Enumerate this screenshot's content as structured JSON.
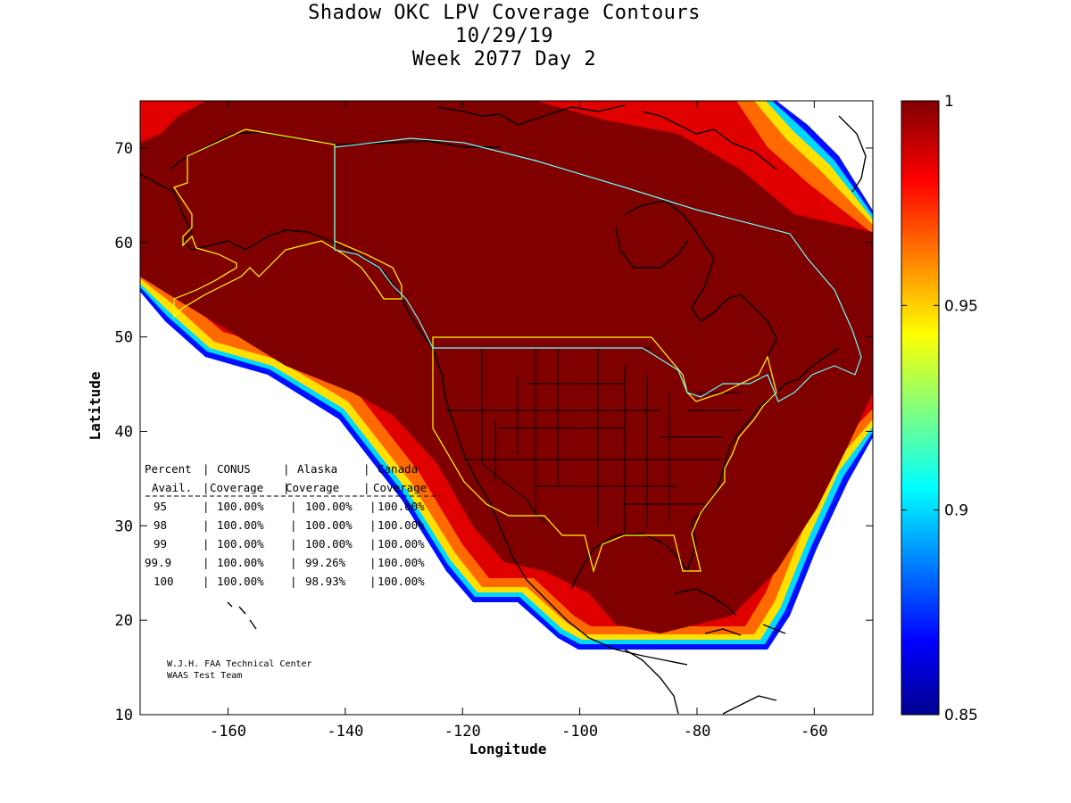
{
  "title": {
    "line1": "Shadow OKC LPV Coverage Contours",
    "line2": "10/29/19",
    "line3": "Week 2077 Day 2"
  },
  "axes": {
    "xlabel": "Longitude",
    "ylabel": "Latitude",
    "x_ticks": [
      "-160",
      "-140",
      "-120",
      "-100",
      "-80",
      "-60"
    ],
    "y_ticks": [
      "70",
      "60",
      "50",
      "40",
      "30",
      "20",
      "10"
    ],
    "xlim": [
      -175,
      -50
    ],
    "ylim": [
      10,
      75
    ]
  },
  "colorbar": {
    "ticks": [
      "1",
      "0.95",
      "0.9",
      "0.85"
    ],
    "range": [
      0.85,
      1.0
    ]
  },
  "table": {
    "header1": [
      "Percent",
      "CONUS",
      "Alaska",
      "Canada"
    ],
    "header2": [
      "Avail.",
      "Coverage",
      "Coverage",
      "Coverage"
    ],
    "rows": [
      {
        "pct": "95",
        "conus": "100.00%",
        "alaska": "100.00%",
        "canada": "100.00%"
      },
      {
        "pct": "98",
        "conus": "100.00%",
        "alaska": "100.00%",
        "canada": "100.00%"
      },
      {
        "pct": "99",
        "conus": "100.00%",
        "alaska": "100.00%",
        "canada": "100.00%"
      },
      {
        "pct": "99.9",
        "conus": "100.00%",
        "alaska": "99.26%",
        "canada": "100.00%"
      },
      {
        "pct": "100",
        "conus": "100.00%",
        "alaska": "98.93%",
        "canada": "100.00%"
      }
    ]
  },
  "credit": {
    "line1": "W.J.H. FAA Technical Center",
    "line2": "WAAS Test Team"
  },
  "colors": {
    "coverage_full": "#800000",
    "alaska_boundary": "#ffff00",
    "canada_boundary": "#66ffff",
    "coastline": "#000000"
  }
}
